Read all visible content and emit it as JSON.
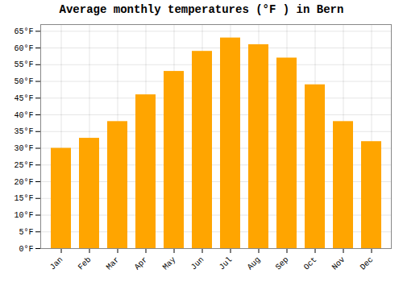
{
  "chart_data": {
    "type": "bar",
    "title": "Average monthly temperatures (°F ) in Bern",
    "categories": [
      "Jan",
      "Feb",
      "Mar",
      "Apr",
      "May",
      "Jun",
      "Jul",
      "Aug",
      "Sep",
      "Oct",
      "Nov",
      "Dec"
    ],
    "values": [
      30,
      33,
      38,
      46,
      53,
      59,
      63,
      61,
      57,
      49,
      38,
      32
    ],
    "color": "#FFA500",
    "ylim": [
      0,
      67
    ],
    "yticks": [
      {
        "value": 0,
        "label": "0°F"
      },
      {
        "value": 5,
        "label": "5°F"
      },
      {
        "value": 10,
        "label": "10°F"
      },
      {
        "value": 15,
        "label": "15°F"
      },
      {
        "value": 20,
        "label": "20°F"
      },
      {
        "value": 25,
        "label": "25°F"
      },
      {
        "value": 30,
        "label": "30°F"
      },
      {
        "value": 35,
        "label": "35°F"
      },
      {
        "value": 40,
        "label": "40°F"
      },
      {
        "value": 45,
        "label": "45°F"
      },
      {
        "value": 50,
        "label": "50°F"
      },
      {
        "value": 55,
        "label": "55°F"
      },
      {
        "value": 60,
        "label": "60°F"
      },
      {
        "value": 65,
        "label": "65°F"
      }
    ],
    "grid": true
  }
}
